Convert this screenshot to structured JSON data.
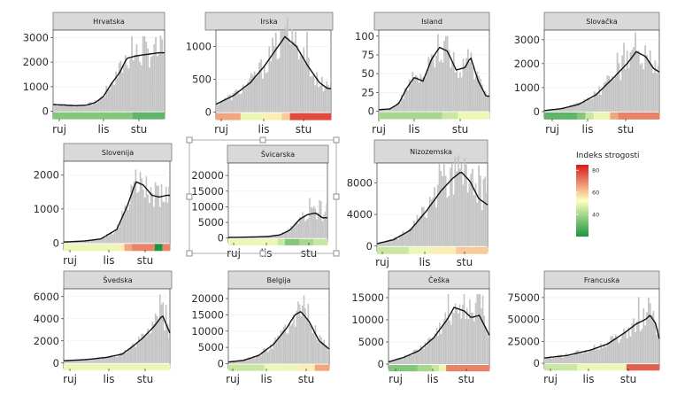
{
  "figure": {
    "legend": {
      "title": "Indeks strogosti",
      "ticks": [
        80,
        60,
        40
      ],
      "range": [
        20,
        85
      ],
      "colors": [
        "#1a9641",
        "#ffffbf",
        "#d7191c"
      ]
    },
    "x_ticks": [
      "ruj",
      "lis",
      "stu"
    ]
  },
  "chart_data": [
    {
      "type": "bar",
      "title": "Hrvatska",
      "x_ticks": [
        "ruj",
        "lis",
        "stu"
      ],
      "y_ticks": [
        0,
        1000,
        2000,
        3000
      ],
      "ylim": [
        -300,
        3300
      ],
      "avg": [
        [
          0,
          280
        ],
        [
          0.07,
          260
        ],
        [
          0.2,
          230
        ],
        [
          0.3,
          250
        ],
        [
          0.38,
          360
        ],
        [
          0.45,
          600
        ],
        [
          0.52,
          1100
        ],
        [
          0.6,
          1600
        ],
        [
          0.66,
          2150
        ],
        [
          0.74,
          2250
        ],
        [
          0.82,
          2300
        ],
        [
          0.9,
          2350
        ],
        [
          0.95,
          2380
        ]
      ],
      "daily_max": 3050,
      "strictness": [
        35,
        35,
        35,
        35,
        35,
        35,
        35,
        35,
        35,
        35,
        30,
        30,
        30,
        30
      ]
    },
    {
      "type": "bar",
      "title": "Irska",
      "x_ticks": [
        "ruj",
        "lis",
        "stu"
      ],
      "y_ticks": [
        0,
        500,
        1000
      ],
      "ylim": [
        -100,
        1250
      ],
      "avg": [
        [
          0,
          120
        ],
        [
          0.15,
          250
        ],
        [
          0.3,
          450
        ],
        [
          0.42,
          700
        ],
        [
          0.52,
          950
        ],
        [
          0.6,
          1150
        ],
        [
          0.7,
          1000
        ],
        [
          0.8,
          700
        ],
        [
          0.9,
          450
        ],
        [
          0.97,
          360
        ]
      ],
      "daily_max": 1250,
      "strictness": [
        65,
        65,
        65,
        50,
        50,
        50,
        55,
        55,
        60,
        78,
        78,
        78,
        78,
        78
      ]
    },
    {
      "type": "bar",
      "title": "Island",
      "x_ticks": [
        "ruj",
        "lis",
        "stu"
      ],
      "y_ticks": [
        0,
        25,
        50,
        75,
        100
      ],
      "ylim": [
        -10,
        108
      ],
      "avg": [
        [
          0,
          2
        ],
        [
          0.1,
          3
        ],
        [
          0.18,
          10
        ],
        [
          0.25,
          30
        ],
        [
          0.32,
          45
        ],
        [
          0.4,
          40
        ],
        [
          0.48,
          70
        ],
        [
          0.55,
          85
        ],
        [
          0.62,
          80
        ],
        [
          0.7,
          55
        ],
        [
          0.78,
          58
        ],
        [
          0.83,
          72
        ],
        [
          0.9,
          40
        ],
        [
          0.97,
          20
        ]
      ],
      "daily_max": 100,
      "strictness": [
        40,
        40,
        40,
        40,
        40,
        40,
        40,
        40,
        45,
        45,
        50,
        50,
        50,
        50
      ]
    },
    {
      "type": "bar",
      "title": "Slovačka",
      "x_ticks": [
        "ruj",
        "lis",
        "stu"
      ],
      "y_ticks": [
        0,
        1000,
        2000,
        3000
      ],
      "ylim": [
        -300,
        3400
      ],
      "avg": [
        [
          0,
          40
        ],
        [
          0.15,
          120
        ],
        [
          0.3,
          300
        ],
        [
          0.45,
          700
        ],
        [
          0.6,
          1400
        ],
        [
          0.72,
          2000
        ],
        [
          0.8,
          2500
        ],
        [
          0.88,
          2300
        ],
        [
          0.95,
          1800
        ],
        [
          1.0,
          1650
        ]
      ],
      "daily_max": 3300,
      "strictness": [
        30,
        30,
        30,
        30,
        35,
        45,
        50,
        50,
        65,
        70,
        70,
        70,
        70,
        70
      ]
    },
    {
      "type": "bar",
      "title": "Slovenija",
      "x_ticks": [
        "ruj",
        "lis",
        "stu"
      ],
      "y_ticks": [
        0,
        1000,
        2000
      ],
      "ylim": [
        -200,
        2400
      ],
      "avg": [
        [
          0,
          30
        ],
        [
          0.2,
          60
        ],
        [
          0.35,
          120
        ],
        [
          0.5,
          400
        ],
        [
          0.6,
          1100
        ],
        [
          0.68,
          1800
        ],
        [
          0.75,
          1700
        ],
        [
          0.83,
          1400
        ],
        [
          0.9,
          1350
        ],
        [
          0.97,
          1400
        ]
      ],
      "daily_max": 2350,
      "strictness": [
        50,
        50,
        50,
        50,
        50,
        50,
        50,
        55,
        65,
        70,
        70,
        70,
        20,
        70
      ]
    },
    {
      "type": "bar",
      "title": "Švicarska",
      "x_ticks": [
        "ruj",
        "lis",
        "stu"
      ],
      "y_ticks": [
        0,
        5000,
        10000,
        15000,
        20000
      ],
      "ylim": [
        -1500,
        24000
      ],
      "avg": [
        [
          0,
          200
        ],
        [
          0.2,
          300
        ],
        [
          0.4,
          500
        ],
        [
          0.52,
          1000
        ],
        [
          0.62,
          2500
        ],
        [
          0.72,
          6000
        ],
        [
          0.8,
          7500
        ],
        [
          0.88,
          8000
        ],
        [
          0.95,
          6500
        ]
      ],
      "daily_max": 21000,
      "strictness": [
        50,
        50,
        50,
        50,
        50,
        50,
        50,
        45,
        35,
        35,
        40,
        40,
        45,
        45
      ]
    },
    {
      "type": "bar",
      "title": "Nizozemska",
      "x_ticks": [
        "ruj",
        "lis",
        "stu"
      ],
      "y_ticks": [
        0,
        4000,
        8000
      ],
      "ylim": [
        -700,
        10500
      ],
      "avg": [
        [
          0,
          300
        ],
        [
          0.15,
          800
        ],
        [
          0.3,
          2000
        ],
        [
          0.45,
          4500
        ],
        [
          0.58,
          7000
        ],
        [
          0.68,
          8500
        ],
        [
          0.76,
          9400
        ],
        [
          0.84,
          8200
        ],
        [
          0.92,
          6000
        ],
        [
          1.0,
          5200
        ]
      ],
      "daily_max": 10500,
      "strictness": [
        45,
        45,
        45,
        45,
        50,
        50,
        50,
        55,
        55,
        55,
        60,
        60,
        60,
        60
      ]
    },
    {
      "type": "bar",
      "title": "Švedska",
      "x_ticks": [
        "ruj",
        "lis",
        "stu"
      ],
      "y_ticks": [
        0,
        2000,
        4000,
        6000
      ],
      "ylim": [
        -500,
        6700
      ],
      "avg": [
        [
          0,
          200
        ],
        [
          0.2,
          300
        ],
        [
          0.4,
          500
        ],
        [
          0.55,
          800
        ],
        [
          0.65,
          1500
        ],
        [
          0.75,
          2300
        ],
        [
          0.85,
          3300
        ],
        [
          0.93,
          4300
        ],
        [
          1.0,
          2700
        ]
      ],
      "daily_max": 6200,
      "strictness": [
        50,
        50,
        50,
        50,
        50,
        50,
        50,
        50,
        50,
        50,
        50,
        50,
        50,
        50
      ]
    },
    {
      "type": "bar",
      "title": "Belgija",
      "x_ticks": [
        "ruj",
        "lis",
        "stu"
      ],
      "y_ticks": [
        0,
        5000,
        10000,
        15000,
        20000
      ],
      "ylim": [
        -1500,
        23000
      ],
      "avg": [
        [
          0,
          500
        ],
        [
          0.15,
          1000
        ],
        [
          0.3,
          2500
        ],
        [
          0.45,
          6000
        ],
        [
          0.58,
          11000
        ],
        [
          0.66,
          15000
        ],
        [
          0.72,
          16000
        ],
        [
          0.8,
          13000
        ],
        [
          0.9,
          7000
        ],
        [
          1.0,
          4500
        ]
      ],
      "daily_max": 21000,
      "strictness": [
        45,
        45,
        45,
        45,
        45,
        50,
        50,
        50,
        50,
        50,
        55,
        55,
        65,
        65
      ]
    },
    {
      "type": "bar",
      "title": "Češka",
      "x_ticks": [
        "ruj",
        "lis",
        "stu"
      ],
      "y_ticks": [
        0,
        5000,
        10000,
        15000
      ],
      "ylim": [
        -1000,
        17000
      ],
      "avg": [
        [
          0,
          500
        ],
        [
          0.15,
          1500
        ],
        [
          0.3,
          3000
        ],
        [
          0.45,
          6000
        ],
        [
          0.58,
          10000
        ],
        [
          0.65,
          12800
        ],
        [
          0.75,
          12000
        ],
        [
          0.82,
          10500
        ],
        [
          0.9,
          11000
        ],
        [
          1.0,
          6500
        ]
      ],
      "daily_max": 15800,
      "strictness": [
        35,
        35,
        35,
        35,
        40,
        40,
        45,
        50,
        70,
        70,
        70,
        70,
        70,
        70
      ]
    },
    {
      "type": "bar",
      "title": "Francuska",
      "x_ticks": [
        "ruj",
        "lis",
        "stu"
      ],
      "y_ticks": [
        0,
        25000,
        50000,
        75000
      ],
      "ylim": [
        -6000,
        85000
      ],
      "avg": [
        [
          0,
          6000
        ],
        [
          0.2,
          9000
        ],
        [
          0.4,
          15000
        ],
        [
          0.55,
          22000
        ],
        [
          0.7,
          35000
        ],
        [
          0.8,
          45000
        ],
        [
          0.88,
          50000
        ],
        [
          0.92,
          55000
        ],
        [
          0.97,
          45000
        ],
        [
          1.0,
          28000
        ]
      ],
      "daily_max": 80000,
      "strictness": [
        45,
        45,
        45,
        45,
        50,
        50,
        50,
        50,
        50,
        50,
        75,
        75,
        75,
        75
      ]
    }
  ]
}
